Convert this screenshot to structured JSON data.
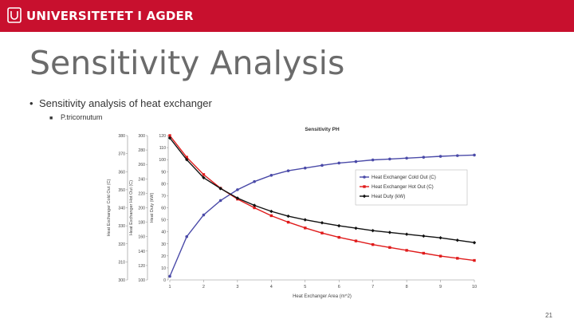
{
  "header": {
    "logo_text": "UNIVERSITETET I AGDER",
    "brand_color": "#c8102e",
    "logo_icon": "uia-logo-icon"
  },
  "slide": {
    "title": "Sensitivity Analysis",
    "bullet_1": "Sensitivity analysis of heat exchanger",
    "bullet_2": "P.tricornutum",
    "page_number": "21"
  },
  "chart_data": {
    "type": "line",
    "title": "Sensitivity PH",
    "xlabel": "Heat Exchanger Area (m^2)",
    "x": [
      1,
      1.5,
      2,
      2.5,
      3,
      3.5,
      4,
      4.5,
      5,
      5.5,
      6,
      6.5,
      7,
      7.5,
      8,
      8.5,
      9,
      9.5,
      10
    ],
    "xlim": [
      1,
      10
    ],
    "x_ticks": [
      "1",
      "2",
      "3",
      "4",
      "5",
      "6",
      "7",
      "8",
      "9",
      "10"
    ],
    "y_axes": [
      {
        "label": "Heat Exchanger Cold Out (C)",
        "ticks": [
          "300",
          "310",
          "320",
          "330",
          "340",
          "350",
          "360",
          "370",
          "380"
        ],
        "ylim": [
          300,
          380
        ]
      },
      {
        "label": "Heat Exchanger Hot Out (C)",
        "ticks": [
          "100",
          "120",
          "140",
          "160",
          "180",
          "200",
          "220",
          "240",
          "260",
          "280",
          "300"
        ],
        "ylim": [
          100,
          300
        ]
      },
      {
        "label": "Heat Duty (kW)",
        "ticks": [
          "0",
          "10",
          "20",
          "30",
          "40",
          "50",
          "60",
          "70",
          "80",
          "90",
          "100",
          "110",
          "120"
        ],
        "ylim": [
          0,
          120
        ]
      }
    ],
    "series": [
      {
        "name": "Heat Exchanger Cold Out (C)",
        "color": "#4a4aa8",
        "marker": "circle",
        "axis": 0,
        "values": [
          302,
          324,
          336,
          344,
          350,
          354.5,
          358,
          360.5,
          362,
          363.5,
          364.8,
          365.6,
          366.5,
          367,
          367.5,
          368,
          368.5,
          368.9,
          369.2
        ]
      },
      {
        "name": "Heat Exchanger Hot Out (C)",
        "color": "#e01b1b",
        "marker": "square",
        "axis": 1,
        "values": [
          300,
          270,
          246,
          227,
          212,
          200,
          189,
          180,
          172,
          165,
          159,
          154,
          149,
          145,
          141,
          137,
          133,
          130,
          127
        ]
      },
      {
        "name": "Heat Duty (kW)",
        "color": "#111111",
        "marker": "diamond",
        "axis": 2,
        "values": [
          118,
          100,
          85,
          76,
          68,
          62,
          57,
          53,
          50,
          47.5,
          45,
          43,
          41,
          39.5,
          38,
          36.5,
          35,
          33,
          31
        ]
      }
    ],
    "legend_position": "center-right",
    "grid": false
  }
}
